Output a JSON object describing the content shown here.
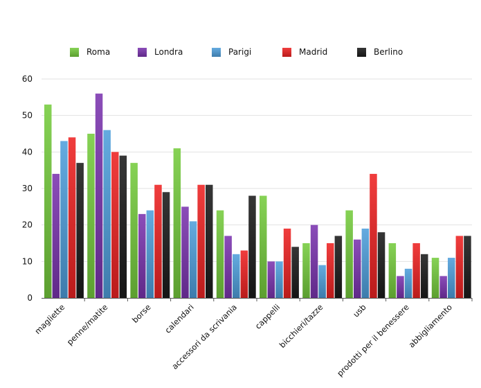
{
  "chart_data": {
    "type": "bar",
    "title": "",
    "xlabel": "",
    "ylabel": "",
    "ylim": [
      0,
      60
    ],
    "yticks": [
      0,
      10,
      20,
      30,
      40,
      50,
      60
    ],
    "grid": true,
    "legend_position": "top",
    "categories": [
      "magliette",
      "penne/matite",
      "borse",
      "calendari",
      "accessori da scrivania",
      "cappelli",
      "bicchieri/tazze",
      "usb",
      "prodotti per il benessere",
      "abbigliamento"
    ],
    "series": [
      {
        "name": "Roma",
        "color": "#76cc3e",
        "values": [
          53,
          45,
          37,
          41,
          24,
          28,
          15,
          24,
          15,
          11
        ]
      },
      {
        "name": "Londra",
        "color": "#7b35b0",
        "values": [
          34,
          56,
          23,
          25,
          17,
          10,
          20,
          16,
          6,
          6
        ]
      },
      {
        "name": "Parigi",
        "color": "#4f9fdc",
        "values": [
          43,
          46,
          24,
          21,
          12,
          10,
          9,
          19,
          8,
          11
        ]
      },
      {
        "name": "Madrid",
        "color": "#ee2222",
        "values": [
          44,
          40,
          31,
          31,
          13,
          19,
          15,
          34,
          15,
          17
        ]
      },
      {
        "name": "Berlino",
        "color": "#1b1b1b",
        "values": [
          37,
          39,
          29,
          31,
          28,
          14,
          17,
          18,
          12,
          17
        ]
      }
    ]
  }
}
